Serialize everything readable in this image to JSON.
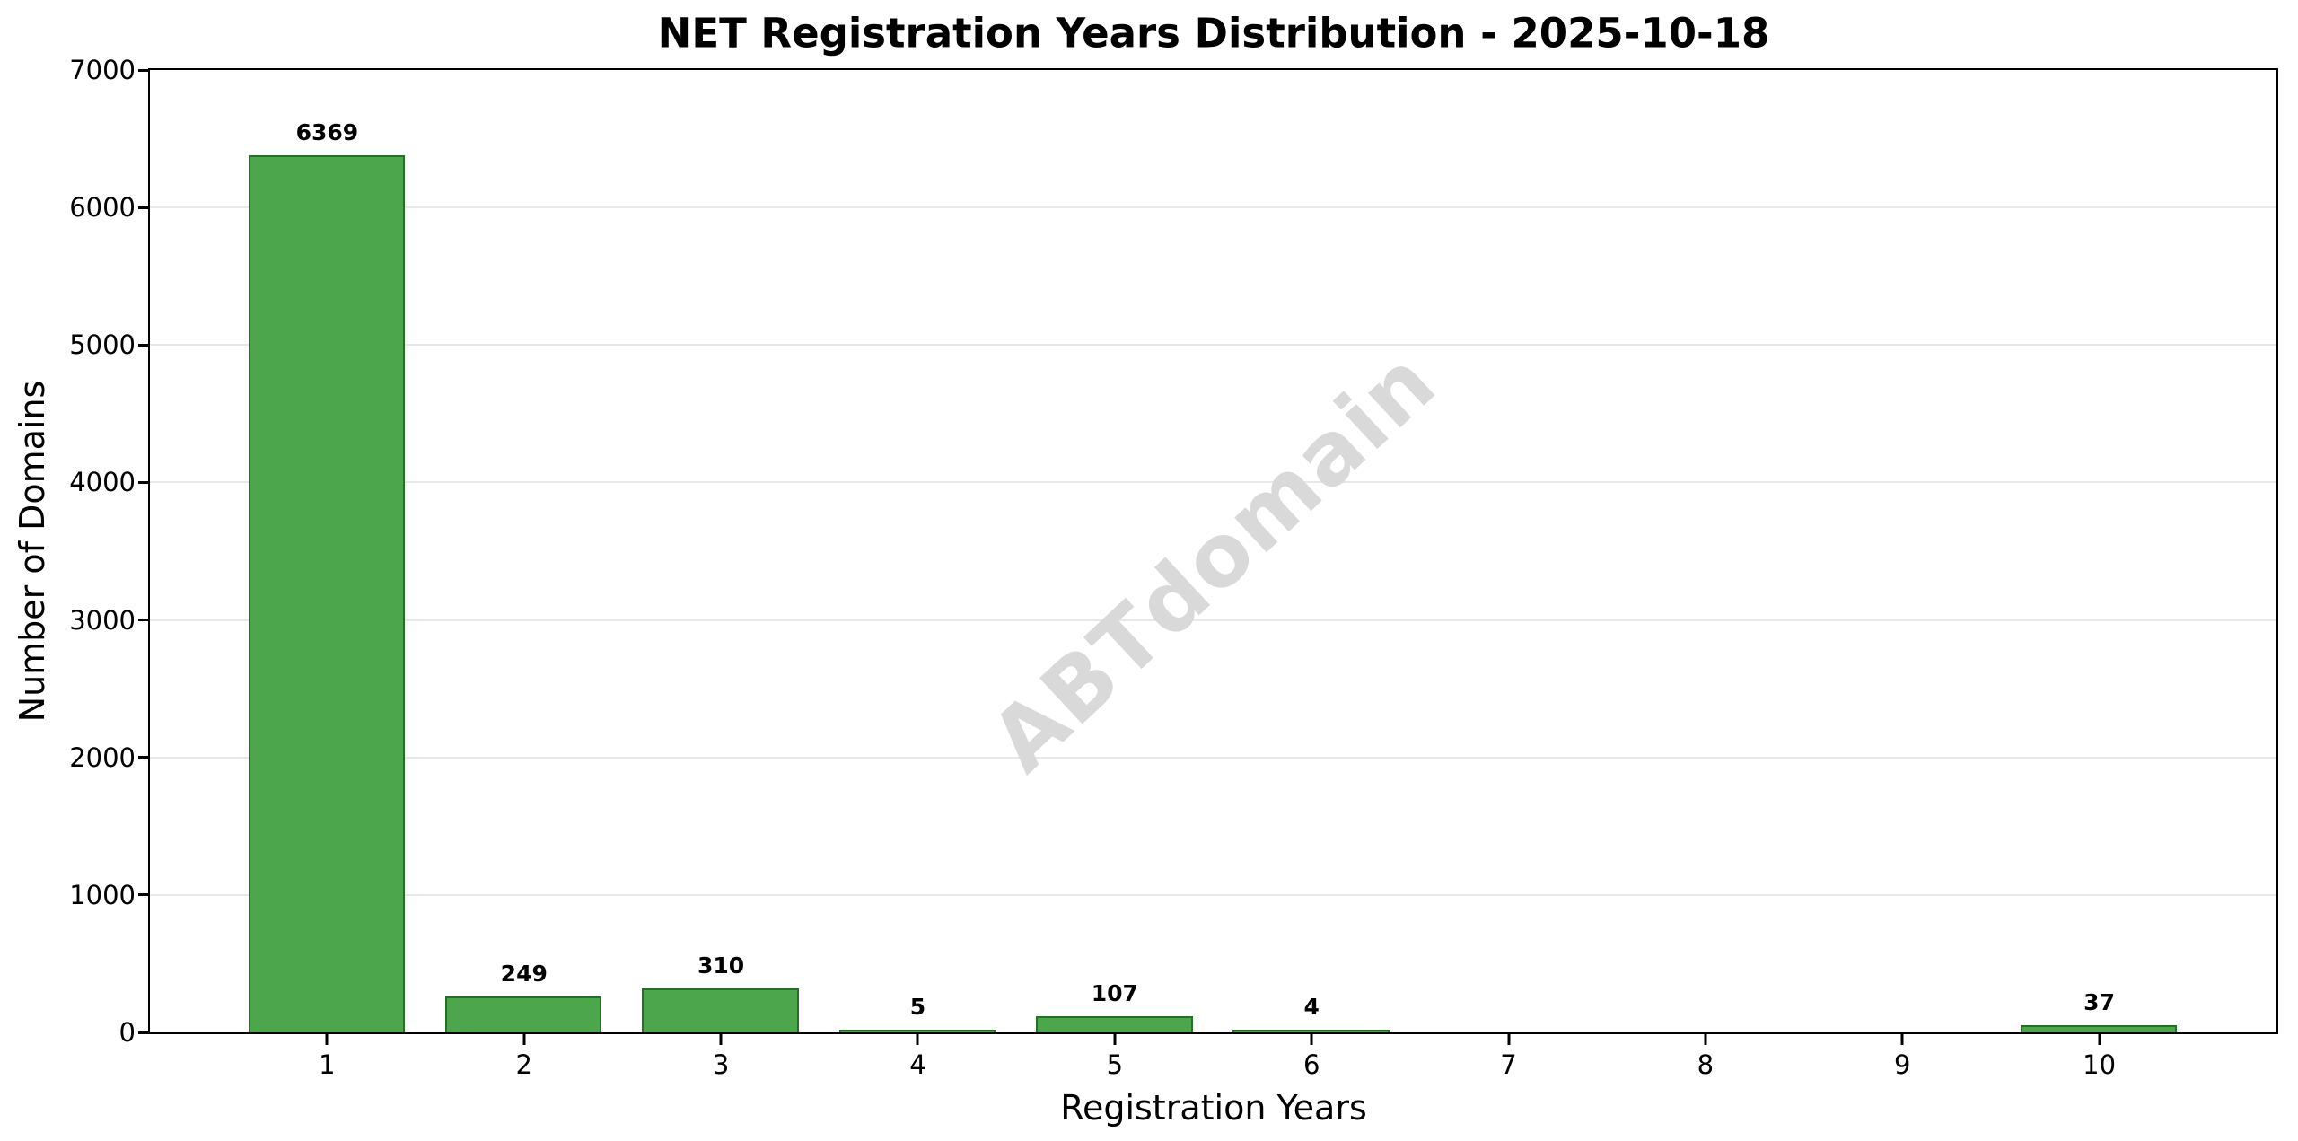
{
  "title": "NET Registration Years Distribution - 2025-10-18",
  "watermark": "ABTdomain",
  "chart_data": {
    "type": "bar",
    "title": "NET Registration Years Distribution - 2025-10-18",
    "xlabel": "Registration Years",
    "ylabel": "Number of Domains",
    "categories": [
      "1",
      "2",
      "3",
      "4",
      "5",
      "6",
      "7",
      "8",
      "9",
      "10"
    ],
    "values": [
      6369,
      249,
      310,
      5,
      107,
      4,
      0,
      0,
      0,
      37
    ],
    "bar_labels": [
      "6369",
      "249",
      "310",
      "5",
      "107",
      "4",
      "",
      "",
      "",
      "37"
    ],
    "ylim": [
      0,
      7000
    ],
    "yticks": [
      0,
      1000,
      2000,
      3000,
      4000,
      5000,
      6000,
      7000
    ],
    "xlim": [
      0.1,
      10.9
    ],
    "bar_width": 0.8,
    "grid": "horizontal-only",
    "legend": "none",
    "colors": {
      "bar_fill": "#4ca64c",
      "bar_edge": "#266f26",
      "gridline": "#e8e8e8",
      "axis": "#000000",
      "text": "#000000",
      "watermark": "#d9d9d9",
      "background": "#ffffff"
    }
  }
}
